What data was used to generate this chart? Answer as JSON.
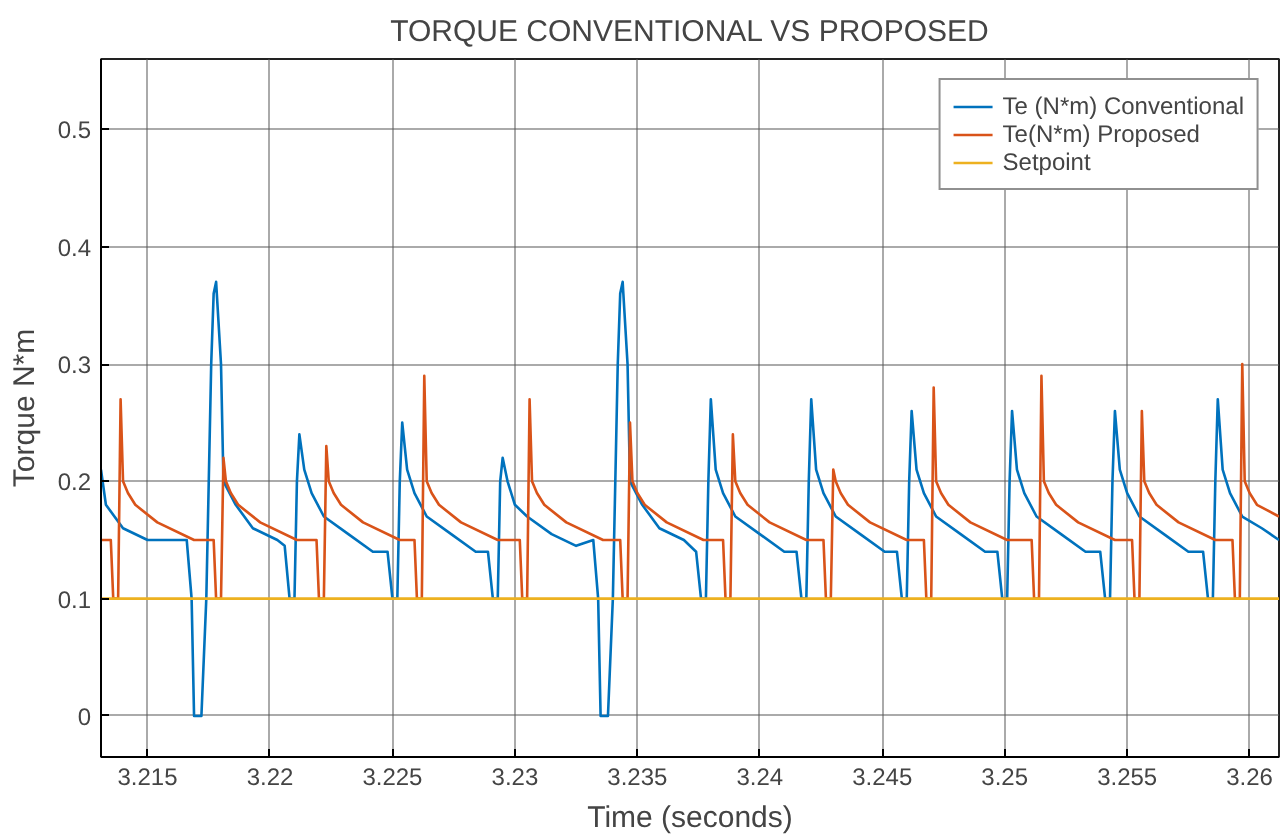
{
  "chart_data": {
    "type": "line",
    "title": "TORQUE CONVENTIONAL VS PROPOSED",
    "xlabel": "Time (seconds)",
    "ylabel": "Torque N*m",
    "xlim": [
      3.2131,
      3.2612
    ],
    "ylim": [
      -0.035,
      0.56
    ],
    "xticks": [
      3.215,
      3.22,
      3.225,
      3.23,
      3.235,
      3.24,
      3.245,
      3.25,
      3.255,
      3.26
    ],
    "yticks": [
      0,
      0.1,
      0.2,
      0.3,
      0.4,
      0.5
    ],
    "grid": true,
    "legend": "top right",
    "line_style": "solid",
    "series": [
      {
        "name": "Te (N*m) Conventional",
        "color": "#0072bd",
        "x": [
          3.2131,
          3.2133,
          3.214,
          3.215,
          3.216,
          3.2166,
          3.2168,
          3.2169,
          3.2172,
          3.2174,
          3.2176,
          3.2177,
          3.2178,
          3.218,
          3.2181,
          3.2186,
          3.2193,
          3.2203,
          3.2206,
          3.2208,
          3.221,
          3.2211,
          3.2212,
          3.2214,
          3.2217,
          3.2222,
          3.2232,
          3.2242,
          3.2248,
          3.225,
          3.2252,
          3.2253,
          3.2254,
          3.2256,
          3.2259,
          3.2264,
          3.2274,
          3.2284,
          3.2289,
          3.2291,
          3.2293,
          3.2294,
          3.2295,
          3.2297,
          3.23,
          3.2305,
          3.2315,
          3.2325,
          3.2332,
          3.2334,
          3.2335,
          3.2338,
          3.234,
          3.2342,
          3.2343,
          3.2344,
          3.2346,
          3.2347,
          3.2352,
          3.2359,
          3.2369,
          3.2374,
          3.2376,
          3.2378,
          3.2379,
          3.238,
          3.2382,
          3.2385,
          3.239,
          3.24,
          3.241,
          3.2415,
          3.2417,
          3.2419,
          3.242,
          3.2421,
          3.2423,
          3.2426,
          3.2431,
          3.2441,
          3.2451,
          3.2456,
          3.2458,
          3.246,
          3.2461,
          3.2462,
          3.2464,
          3.2467,
          3.2472,
          3.2482,
          3.2492,
          3.2497,
          3.2499,
          3.2501,
          3.2502,
          3.2503,
          3.2505,
          3.2508,
          3.2513,
          3.2523,
          3.2533,
          3.2539,
          3.2541,
          3.2543,
          3.2544,
          3.2545,
          3.2547,
          3.255,
          3.2555,
          3.2565,
          3.2575,
          3.2581,
          3.2583,
          3.2585,
          3.2586,
          3.2587,
          3.2589,
          3.2592,
          3.2597,
          3.2605,
          3.2612
        ],
        "values": [
          0.21,
          0.18,
          0.16,
          0.15,
          0.15,
          0.15,
          0.1,
          0.0,
          0.0,
          0.1,
          0.3,
          0.36,
          0.37,
          0.3,
          0.2,
          0.18,
          0.16,
          0.15,
          0.145,
          0.1,
          0.1,
          0.2,
          0.24,
          0.21,
          0.19,
          0.17,
          0.155,
          0.14,
          0.14,
          0.1,
          0.1,
          0.2,
          0.25,
          0.21,
          0.19,
          0.17,
          0.155,
          0.14,
          0.14,
          0.1,
          0.1,
          0.2,
          0.22,
          0.2,
          0.18,
          0.17,
          0.155,
          0.145,
          0.15,
          0.1,
          0.0,
          0.0,
          0.1,
          0.3,
          0.36,
          0.37,
          0.3,
          0.2,
          0.18,
          0.16,
          0.15,
          0.14,
          0.1,
          0.1,
          0.2,
          0.27,
          0.21,
          0.19,
          0.17,
          0.155,
          0.14,
          0.14,
          0.1,
          0.1,
          0.2,
          0.27,
          0.21,
          0.19,
          0.17,
          0.155,
          0.14,
          0.14,
          0.1,
          0.1,
          0.2,
          0.26,
          0.21,
          0.19,
          0.17,
          0.155,
          0.14,
          0.14,
          0.1,
          0.1,
          0.2,
          0.26,
          0.21,
          0.19,
          0.17,
          0.155,
          0.14,
          0.14,
          0.1,
          0.1,
          0.2,
          0.26,
          0.21,
          0.19,
          0.17,
          0.155,
          0.14,
          0.14,
          0.1,
          0.1,
          0.2,
          0.27,
          0.21,
          0.19,
          0.17,
          0.16,
          0.15
        ]
      },
      {
        "name": "Te(N*m) Proposed",
        "color": "#d95319",
        "x": [
          3.2131,
          3.2135,
          3.2136,
          3.2138,
          3.2139,
          3.214,
          3.2142,
          3.2145,
          3.2154,
          3.2169,
          3.2177,
          3.2178,
          3.218,
          3.2181,
          3.2182,
          3.2184,
          3.2187,
          3.2196,
          3.2211,
          3.2219,
          3.222,
          3.2222,
          3.2223,
          3.2224,
          3.2226,
          3.2229,
          3.2238,
          3.2253,
          3.2259,
          3.226,
          3.2262,
          3.2263,
          3.2264,
          3.2266,
          3.2269,
          3.2278,
          3.2293,
          3.2302,
          3.2303,
          3.2305,
          3.2306,
          3.2307,
          3.2309,
          3.2312,
          3.2321,
          3.2336,
          3.2343,
          3.2344,
          3.2346,
          3.2347,
          3.2348,
          3.235,
          3.2353,
          3.2362,
          3.2377,
          3.2385,
          3.2386,
          3.2388,
          3.2389,
          3.239,
          3.2392,
          3.2395,
          3.2404,
          3.2419,
          3.2426,
          3.2427,
          3.2429,
          3.243,
          3.2431,
          3.2433,
          3.2436,
          3.2445,
          3.246,
          3.2467,
          3.2468,
          3.247,
          3.2471,
          3.2472,
          3.2474,
          3.2477,
          3.2486,
          3.2501,
          3.2511,
          3.2512,
          3.2514,
          3.2515,
          3.2516,
          3.2518,
          3.2521,
          3.253,
          3.2545,
          3.2552,
          3.2553,
          3.2555,
          3.2556,
          3.2557,
          3.2559,
          3.2562,
          3.2571,
          3.2586,
          3.2593,
          3.2594,
          3.2596,
          3.2597,
          3.2598,
          3.26,
          3.2603,
          3.2612
        ],
        "values": [
          0.15,
          0.15,
          0.1,
          0.1,
          0.27,
          0.2,
          0.19,
          0.18,
          0.165,
          0.15,
          0.15,
          0.1,
          0.1,
          0.22,
          0.2,
          0.19,
          0.18,
          0.165,
          0.15,
          0.15,
          0.1,
          0.1,
          0.23,
          0.2,
          0.19,
          0.18,
          0.165,
          0.15,
          0.15,
          0.1,
          0.1,
          0.29,
          0.2,
          0.19,
          0.18,
          0.165,
          0.15,
          0.15,
          0.1,
          0.1,
          0.27,
          0.2,
          0.19,
          0.18,
          0.165,
          0.15,
          0.15,
          0.1,
          0.1,
          0.25,
          0.2,
          0.19,
          0.18,
          0.165,
          0.15,
          0.15,
          0.1,
          0.1,
          0.24,
          0.2,
          0.19,
          0.18,
          0.165,
          0.15,
          0.15,
          0.1,
          0.1,
          0.21,
          0.2,
          0.19,
          0.18,
          0.165,
          0.15,
          0.15,
          0.1,
          0.1,
          0.28,
          0.2,
          0.19,
          0.18,
          0.165,
          0.15,
          0.15,
          0.1,
          0.1,
          0.29,
          0.2,
          0.19,
          0.18,
          0.165,
          0.15,
          0.15,
          0.1,
          0.1,
          0.26,
          0.2,
          0.19,
          0.18,
          0.165,
          0.15,
          0.15,
          0.1,
          0.1,
          0.3,
          0.2,
          0.19,
          0.18,
          0.17
        ]
      },
      {
        "name": "Setpoint",
        "color": "#edb120",
        "x": [
          3.2131,
          3.2612
        ],
        "values": [
          0.1,
          0.1
        ]
      }
    ]
  }
}
